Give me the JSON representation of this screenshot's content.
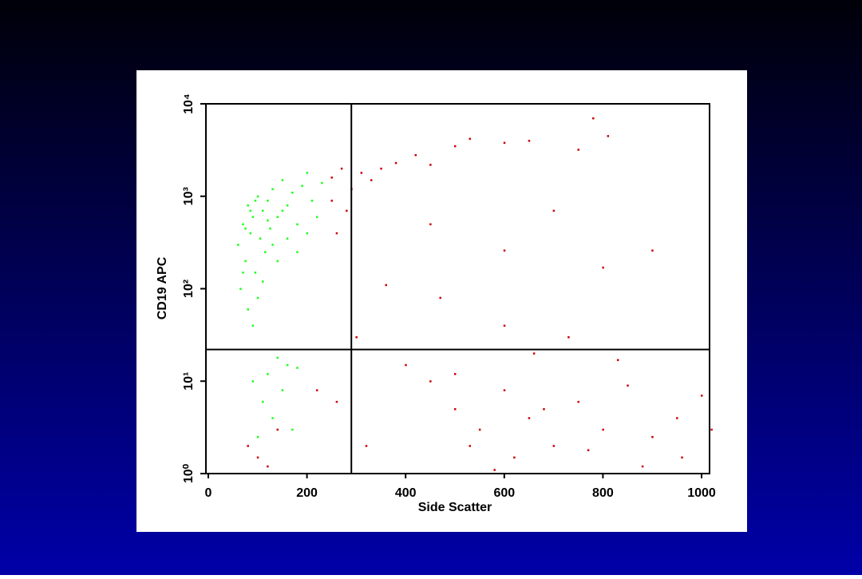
{
  "chart_data": {
    "type": "scatter",
    "x_label": "Side Scatter",
    "y_label": "CD19 APC",
    "xlim": [
      0,
      1024
    ],
    "xticks": [
      0,
      200,
      400,
      600,
      800,
      1000
    ],
    "ylim": [
      1,
      10000
    ],
    "log_y": true,
    "yticks": [
      {
        "value": 1,
        "label": "10⁰"
      },
      {
        "value": 10,
        "label": "10¹"
      },
      {
        "value": 100,
        "label": "10²"
      },
      {
        "value": 1000,
        "label": "10³"
      },
      {
        "value": 10000,
        "label": "10⁴"
      }
    ],
    "quadrant_gate": {
      "x": 290,
      "y": 22
    },
    "series": [
      {
        "color": "#19ff19",
        "x": [
          60,
          70,
          75,
          80,
          85,
          90,
          95,
          100,
          105,
          110,
          115,
          120,
          125,
          130,
          140,
          150,
          160,
          170,
          180,
          190,
          200,
          210,
          220,
          65,
          80,
          90,
          100,
          110,
          70,
          130,
          140,
          160,
          180,
          200,
          85,
          95,
          75,
          120,
          150,
          230,
          90,
          110,
          130,
          150,
          160,
          170,
          120,
          140,
          100,
          180
        ],
        "y": [
          300,
          500,
          200,
          800,
          400,
          600,
          150,
          1000,
          350,
          700,
          250,
          900,
          450,
          1200,
          600,
          1500,
          800,
          1100,
          500,
          1300,
          1800,
          900,
          600,
          100,
          60,
          40,
          80,
          120,
          150,
          300,
          200,
          350,
          250,
          400,
          700,
          900,
          450,
          550,
          700,
          1400,
          10,
          6,
          4,
          8,
          15,
          3,
          12,
          18,
          2.5,
          14
        ]
      },
      {
        "color": "#cc0000",
        "x": [
          250,
          270,
          290,
          310,
          330,
          350,
          380,
          420,
          450,
          500,
          530,
          600,
          650,
          750,
          780,
          810,
          900,
          800,
          700,
          600,
          450,
          470,
          360,
          600,
          730,
          250,
          260,
          280,
          300,
          400,
          450,
          500,
          550,
          600,
          650,
          700,
          750,
          800,
          850,
          900,
          950,
          1000,
          1020,
          530,
          620,
          680,
          770,
          880,
          960,
          80,
          100,
          120,
          140,
          220,
          260,
          500,
          660,
          830,
          320,
          580
        ],
        "y": [
          1600,
          2000,
          1200,
          1800,
          1500,
          2000,
          2300,
          2800,
          2200,
          3500,
          4200,
          3800,
          4000,
          3200,
          7000,
          4500,
          260,
          170,
          700,
          260,
          500,
          80,
          110,
          40,
          30,
          900,
          400,
          700,
          30,
          15,
          10,
          5,
          3,
          8,
          4,
          2,
          6,
          3,
          9,
          2.5,
          4,
          7,
          3,
          2,
          1.5,
          5,
          1.8,
          1.2,
          1.5,
          2,
          1.5,
          1.2,
          3,
          8,
          6,
          12,
          20,
          17,
          2,
          1.1
        ]
      }
    ]
  }
}
